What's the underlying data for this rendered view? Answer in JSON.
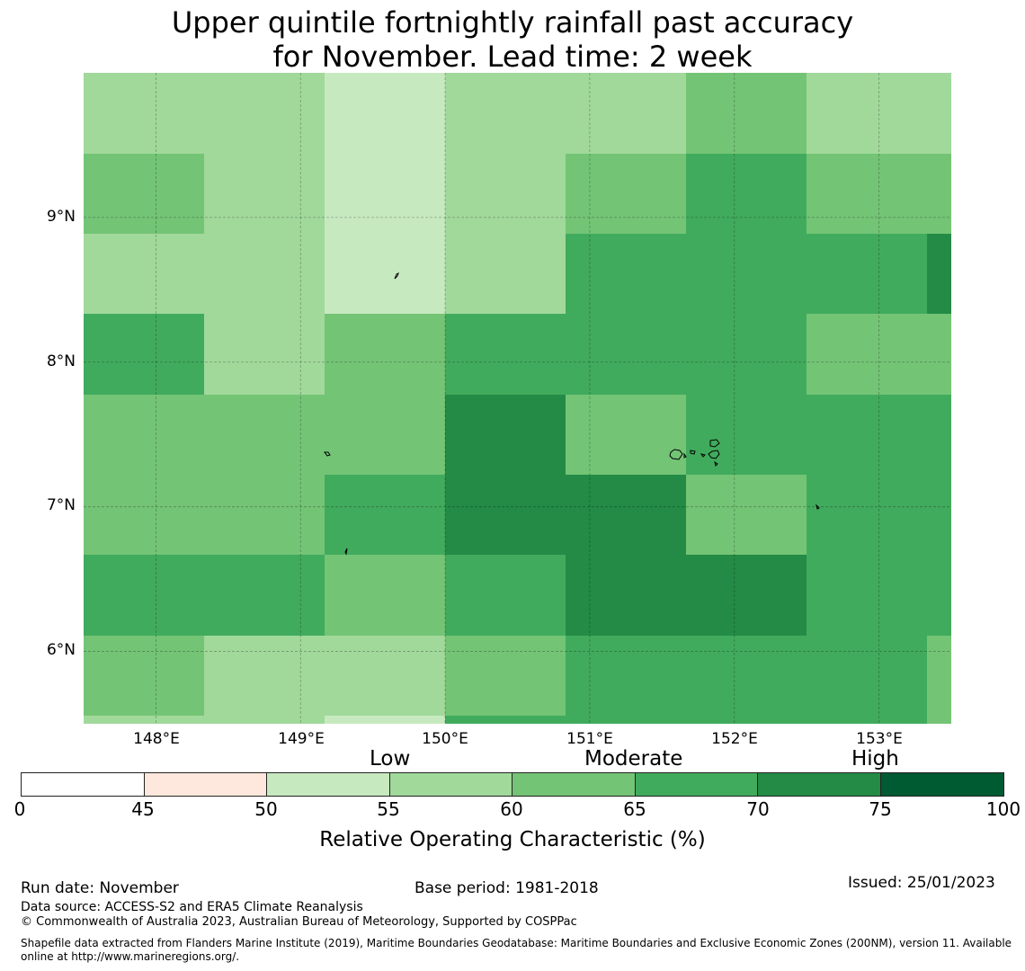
{
  "title": {
    "line1": "Upper quintile fortnightly rainfall past accuracy",
    "line2": "for November. Lead time: 2 week"
  },
  "map": {
    "lat_labels": [
      "9°N",
      "8°N",
      "7°N",
      "6°N"
    ],
    "lon_labels": [
      "148°E",
      "149°E",
      "150°E",
      "151°E",
      "152°E",
      "153°E"
    ],
    "grid_lats": [
      9,
      8,
      7,
      6
    ],
    "grid_lons": [
      148,
      149,
      150,
      151,
      152,
      153
    ],
    "extent": {
      "lon_min": 147.5,
      "lon_max": 153.5,
      "lat_min": 5.5,
      "lat_max": 10.0
    },
    "colors": {
      "c50": "#c7e9c0",
      "c55": "#a1d99b",
      "c60": "#74c476",
      "c65": "#41ab5d",
      "c70": "#238b45"
    },
    "cell_rows": [
      [
        "c55",
        "c55",
        "c50",
        "c55",
        "c55",
        "c60",
        "c55",
        "c55"
      ],
      [
        "c60",
        "c55",
        "c50",
        "c55",
        "c60",
        "c65",
        "c60",
        "c60"
      ],
      [
        "c55",
        "c55",
        "c50",
        "c55",
        "c65",
        "c65",
        "c65",
        "c65"
      ],
      [
        "c65",
        "c55",
        "c60",
        "c65",
        "c65",
        "c65",
        "c60",
        "c60"
      ],
      [
        "c60",
        "c60",
        "c60",
        "c70",
        "c60",
        "c65",
        "c65",
        "c65"
      ],
      [
        "c60",
        "c60",
        "c65",
        "c70",
        "c70",
        "c60",
        "c65",
        "c65"
      ],
      [
        "c65",
        "c65",
        "c60",
        "c65",
        "c70",
        "c70",
        "c65",
        "c65"
      ],
      [
        "c60",
        "c55",
        "c55",
        "c60",
        "c65",
        "c65",
        "c65",
        "c65"
      ],
      [
        "c55",
        "c55",
        "c50",
        "c65",
        "c65",
        "c65",
        "c65",
        "c65"
      ]
    ]
  },
  "legend": {
    "category_labels": [
      "Low",
      "Moderate",
      "High"
    ],
    "tick_labels": [
      "0",
      "45",
      "50",
      "55",
      "60",
      "65",
      "70",
      "75",
      "100"
    ],
    "bins": [
      {
        "from": 0,
        "to": 45,
        "color": "#ffffff"
      },
      {
        "from": 45,
        "to": 50,
        "color": "#fee8dd"
      },
      {
        "from": 50,
        "to": 55,
        "color": "#c7e9c0"
      },
      {
        "from": 55,
        "to": 60,
        "color": "#a1d99b"
      },
      {
        "from": 60,
        "to": 65,
        "color": "#74c476"
      },
      {
        "from": 65,
        "to": 70,
        "color": "#41ab5d"
      },
      {
        "from": 70,
        "to": 75,
        "color": "#238b45"
      },
      {
        "from": 75,
        "to": 100,
        "color": "#005a32"
      }
    ],
    "axis_label": "Relative Operating Characteristic (%)"
  },
  "footer": {
    "run_date": "Run date: November",
    "base_period": "Base period: 1981-2018",
    "issued": "Issued: 25/01/2023",
    "data_source": "Data source: ACCESS-S2 and ERA5 Climate Reanalysis",
    "copyright": "© Commonwealth of Australia 2023, Australian Bureau of Meteorology, Supported by COSPPac",
    "shapefile": "Shapefile data extracted from Flanders Marine Institute (2019), Maritime Boundaries Geodatabase: Maritime Boundaries and Exclusive Economic Zones (200NM), version 11. Available online at http://www.marineregions.org/."
  }
}
